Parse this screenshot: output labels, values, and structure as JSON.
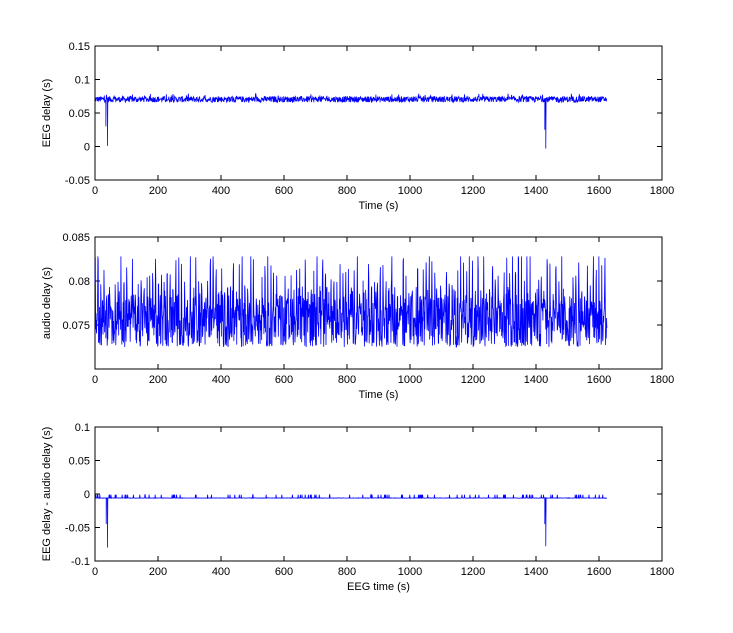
{
  "chart_data": [
    {
      "type": "line",
      "title": "",
      "xlabel": "Time (s)",
      "ylabel": "EEG delay (s)",
      "xlim": [
        0,
        1800
      ],
      "ylim": [
        -0.05,
        0.15
      ],
      "xticks": [
        "0",
        "200",
        "400",
        "600",
        "800",
        "1000",
        "1200",
        "1400",
        "1600",
        "1800"
      ],
      "yticks": [
        "-0.05",
        "0",
        "0.05",
        "0.1",
        "0.15"
      ],
      "grid": false,
      "series": [
        {
          "color": "#0000ff",
          "x_range": [
            0,
            1625
          ],
          "baseline": 0.07,
          "noise_band": [
            0.066,
            0.075
          ],
          "spikes": [
            {
              "x": 35,
              "min": 0.03
            },
            {
              "x": 40,
              "min": 0.001
            },
            {
              "x": 1428,
              "min": 0.025
            },
            {
              "x": 1431,
              "min": -0.003
            }
          ]
        }
      ]
    },
    {
      "type": "line",
      "title": "",
      "xlabel": "Time (s)",
      "ylabel": "audio delay (s)",
      "xlim": [
        0,
        1800
      ],
      "ylim": [
        0.07,
        0.085
      ],
      "xticks": [
        "0",
        "200",
        "400",
        "600",
        "800",
        "1000",
        "1200",
        "1400",
        "1600",
        "1800"
      ],
      "yticks": [
        "0.075",
        "0.08",
        "0.085"
      ],
      "grid": false,
      "series": [
        {
          "color": "#0000ff",
          "x_range": [
            0,
            1625
          ],
          "range": [
            0.0725,
            0.0828
          ],
          "typical_center": 0.0765
        }
      ]
    },
    {
      "type": "line",
      "title": "",
      "xlabel": "EEG time (s)",
      "ylabel": "EEG delay - audio delay (s)",
      "xlim": [
        0,
        1800
      ],
      "ylim": [
        -0.1,
        0.1
      ],
      "xticks": [
        "0",
        "200",
        "400",
        "600",
        "800",
        "1000",
        "1200",
        "1400",
        "1600",
        "1800"
      ],
      "yticks": [
        "-0.1",
        "-0.05",
        "0",
        "0.05",
        "0.1"
      ],
      "grid": false,
      "series": [
        {
          "color": "#0000ff",
          "x_range": [
            0,
            1625
          ],
          "baseline": -0.006,
          "upward_spike_top": -0.001,
          "spikes": [
            {
              "x": 36,
              "min": -0.045
            },
            {
              "x": 40,
              "min": -0.08
            },
            {
              "x": 1428,
              "min": -0.045
            },
            {
              "x": 1431,
              "min": -0.078
            }
          ]
        }
      ]
    }
  ]
}
